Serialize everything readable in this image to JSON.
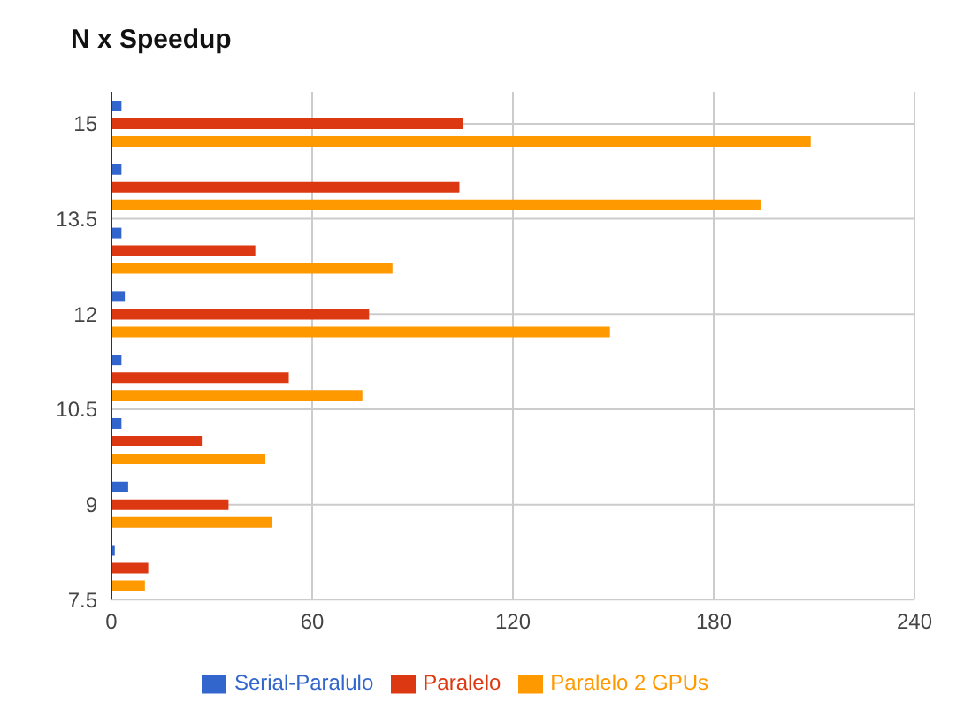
{
  "chart_data": {
    "type": "bar",
    "orientation": "horizontal",
    "title": "N x Speedup",
    "x": [
      15,
      14,
      13,
      12,
      11,
      10,
      9,
      8
    ],
    "series": [
      {
        "name": "Serial-Paralulo",
        "color": "#3366cc",
        "values": [
          3,
          3,
          3,
          4,
          3,
          3,
          5,
          1
        ]
      },
      {
        "name": "Paralelo",
        "color": "#dc3912",
        "values": [
          105,
          104,
          43,
          77,
          53,
          27,
          35,
          11
        ]
      },
      {
        "name": "Paralelo 2 GPUs",
        "color": "#ff9900",
        "values": [
          209,
          194,
          84,
          149,
          75,
          46,
          48,
          10
        ]
      }
    ],
    "xlim": [
      0,
      240
    ],
    "xticks": [
      0,
      60,
      120,
      180,
      240
    ],
    "ylim": [
      7.5,
      15.5
    ],
    "yticks": [
      7.5,
      9,
      10.5,
      12,
      13.5,
      15
    ],
    "grid": true,
    "legend": "bottom"
  }
}
